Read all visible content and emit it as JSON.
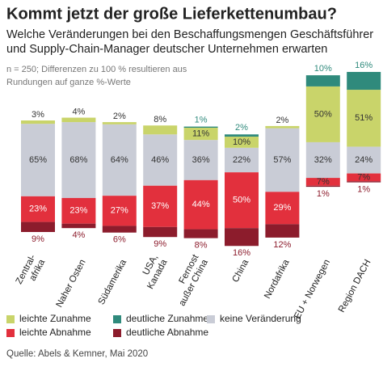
{
  "chart_data": {
    "type": "diverging-stacked-bar",
    "title": "Kommt jetzt der große Lieferkettenumbau?",
    "subtitle": [
      "Welche Veränderungen bei den Beschaffungsmengen Geschäftsführer",
      "und Supply-Chain-Manager deutscher Unternehmen erwarten"
    ],
    "note": [
      "n = 250; Differenzen zu 100 % resultieren aus",
      "Rundungen auf ganze %-Werte"
    ],
    "source": "Quelle: Abels & Kemner, Mai 2020",
    "categories": [
      [
        "Zentral-",
        "afrika"
      ],
      [
        "Naher Osten"
      ],
      [
        "Südamerika"
      ],
      [
        "USA,",
        "Kanada"
      ],
      [
        "Fernost",
        "außer China"
      ],
      [
        "China"
      ],
      [
        "Nordafrika"
      ],
      [
        "EU + Norwegen"
      ],
      [
        "Region DACH"
      ]
    ],
    "series": [
      {
        "name": "leichte Zunahme",
        "color": "#c9d46a",
        "values": [
          3,
          4,
          2,
          8,
          11,
          10,
          2,
          50,
          51
        ],
        "value_labels": [
          "3%",
          "4%",
          "2%",
          "8%",
          "11%",
          "10%",
          "2%",
          "50%",
          "51%"
        ]
      },
      {
        "name": "deutliche Zunahme",
        "color": "#2f8a7c",
        "values": [
          null,
          null,
          null,
          null,
          1,
          2,
          null,
          10,
          16
        ],
        "value_labels": [
          null,
          null,
          null,
          null,
          "1%",
          "2%",
          null,
          "10%",
          "16%"
        ]
      },
      {
        "name": "keine Veränderung",
        "color": "#c9ccd6",
        "values": [
          65,
          68,
          64,
          46,
          36,
          22,
          57,
          32,
          24
        ],
        "value_labels": [
          "65%",
          "68%",
          "64%",
          "46%",
          "36%",
          "22%",
          "57%",
          "32%",
          "24%"
        ]
      },
      {
        "name": "leichte Abnahme",
        "color": "#e2303d",
        "values": [
          23,
          23,
          27,
          37,
          44,
          50,
          29,
          7,
          7
        ],
        "value_labels": [
          "23%",
          "23%",
          "27%",
          "37%",
          "44%",
          "50%",
          "29%",
          "7%",
          "7%"
        ]
      },
      {
        "name": "deutliche Abnahme",
        "color": "#8c1c2c",
        "values": [
          9,
          4,
          6,
          9,
          8,
          16,
          12,
          1,
          1
        ],
        "value_labels": [
          "9%",
          "4%",
          "6%",
          "9%",
          "8%",
          "16%",
          "12%",
          "1%",
          "1%"
        ]
      }
    ]
  }
}
